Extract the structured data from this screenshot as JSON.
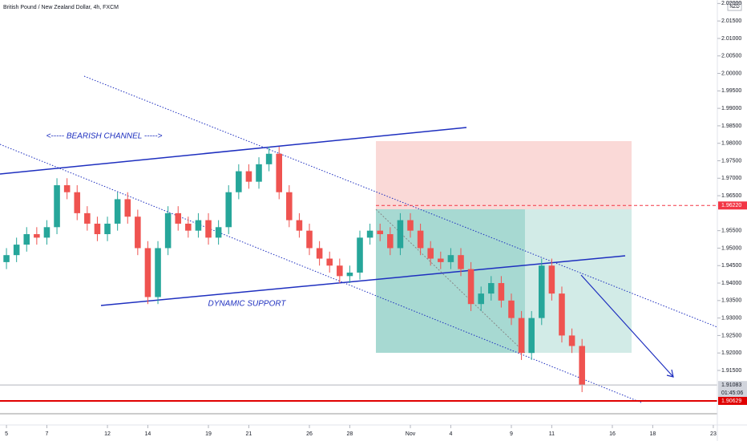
{
  "chart_data": {
    "type": "candlestick",
    "title": "British Pound / New Zealand Dollar, 4h, FXCM",
    "currency": "NZD",
    "annotations": [
      "<----- BEARISH CHANNEL ----->",
      "DYNAMIC SUPPORT"
    ],
    "up_color": "#26a69a",
    "down_color": "#ef5350",
    "x": [
      0,
      0.5,
      1,
      1.5,
      2,
      2.5,
      3,
      3.5,
      4,
      4.5,
      5,
      5.5,
      6,
      6.5,
      7,
      7.5,
      8,
      8.5,
      9,
      9.5,
      10,
      10.5,
      11,
      11.5,
      12,
      12.5,
      13,
      13.5,
      14,
      14.5,
      15,
      15.5,
      16,
      16.5,
      17,
      17.5,
      18,
      18.5,
      19,
      19.5,
      20,
      20.5,
      21,
      21.5,
      22,
      22.5,
      23,
      23.5,
      24,
      24.5,
      25,
      25.5,
      26,
      26.5,
      27,
      27.5,
      28,
      28.5
    ],
    "open": [
      1.946,
      1.948,
      1.951,
      1.954,
      1.953,
      1.956,
      1.968,
      1.966,
      1.96,
      1.957,
      1.954,
      1.957,
      1.964,
      1.959,
      1.95,
      1.936,
      1.95,
      1.96,
      1.957,
      1.955,
      1.958,
      1.953,
      1.956,
      1.966,
      1.972,
      1.969,
      1.974,
      1.977,
      1.966,
      1.958,
      1.955,
      1.95,
      1.947,
      1.945,
      1.942,
      1.943,
      1.953,
      1.955,
      1.954,
      1.95,
      1.958,
      1.955,
      1.95,
      1.947,
      1.946,
      1.948,
      1.944,
      1.934,
      1.937,
      1.94,
      1.935,
      1.93,
      1.92,
      1.93,
      1.945,
      1.937,
      1.925,
      1.922
    ],
    "high": [
      1.95,
      1.953,
      1.956,
      1.956,
      1.958,
      1.97,
      1.97,
      1.968,
      1.962,
      1.959,
      1.959,
      1.966,
      1.966,
      1.961,
      1.952,
      1.952,
      1.962,
      1.962,
      1.959,
      1.96,
      1.96,
      1.958,
      1.968,
      1.974,
      1.974,
      1.976,
      1.979,
      1.979,
      1.968,
      1.96,
      1.957,
      1.952,
      1.949,
      1.947,
      1.945,
      1.955,
      1.957,
      1.957,
      1.956,
      1.96,
      1.96,
      1.957,
      1.952,
      1.949,
      1.95,
      1.95,
      1.946,
      1.939,
      1.942,
      1.942,
      1.937,
      1.932,
      1.932,
      1.947,
      1.947,
      1.939,
      1.927,
      1.924
    ],
    "low": [
      1.944,
      1.946,
      1.949,
      1.951,
      1.951,
      1.954,
      1.964,
      1.958,
      1.955,
      1.952,
      1.952,
      1.955,
      1.957,
      1.948,
      1.934,
      1.934,
      1.948,
      1.955,
      1.953,
      1.953,
      1.951,
      1.951,
      1.954,
      1.964,
      1.967,
      1.967,
      1.972,
      1.964,
      1.956,
      1.953,
      1.948,
      1.945,
      1.943,
      1.94,
      1.94,
      1.941,
      1.951,
      1.952,
      1.948,
      1.948,
      1.953,
      1.948,
      1.945,
      1.944,
      1.944,
      1.942,
      1.932,
      1.932,
      1.935,
      1.933,
      1.928,
      1.918,
      1.918,
      1.928,
      1.935,
      1.923,
      1.92,
      1.9088
    ],
    "close": [
      1.948,
      1.951,
      1.954,
      1.953,
      1.956,
      1.968,
      1.966,
      1.96,
      1.957,
      1.954,
      1.957,
      1.964,
      1.959,
      1.95,
      1.936,
      1.95,
      1.96,
      1.957,
      1.955,
      1.958,
      1.953,
      1.956,
      1.966,
      1.972,
      1.969,
      1.974,
      1.977,
      1.966,
      1.958,
      1.955,
      1.95,
      1.947,
      1.945,
      1.942,
      1.943,
      1.953,
      1.955,
      1.954,
      1.95,
      1.958,
      1.955,
      1.95,
      1.947,
      1.946,
      1.948,
      1.944,
      1.934,
      1.937,
      1.94,
      1.935,
      1.93,
      1.92,
      1.93,
      1.945,
      1.937,
      1.925,
      1.922,
      1.9108
    ],
    "xlim": [
      -0.32,
      35.2
    ],
    "xticks": [
      {
        "value": 0,
        "label": "5"
      },
      {
        "value": 2,
        "label": "7"
      },
      {
        "value": 5,
        "label": "12"
      },
      {
        "value": 7,
        "label": "14"
      },
      {
        "value": 10,
        "label": "19"
      },
      {
        "value": 12,
        "label": "21"
      },
      {
        "value": 15,
        "label": "26"
      },
      {
        "value": 17,
        "label": "28"
      },
      {
        "value": 20,
        "label": "Nov"
      },
      {
        "value": 22,
        "label": "4"
      },
      {
        "value": 25,
        "label": "9"
      },
      {
        "value": 27,
        "label": "11"
      },
      {
        "value": 30,
        "label": "16"
      },
      {
        "value": 32,
        "label": "18"
      },
      {
        "value": 35,
        "label": "23"
      }
    ],
    "ylim": [
      1.8994,
      2.021
    ],
    "yticks": [
      {
        "value": 2.02,
        "label": "2.02000"
      },
      {
        "value": 2.015,
        "label": "2.01500"
      },
      {
        "value": 2.01,
        "label": "2.01000"
      },
      {
        "value": 2.005,
        "label": "2.00500"
      },
      {
        "value": 2.0,
        "label": "2.00000"
      },
      {
        "value": 1.995,
        "label": "1.99500"
      },
      {
        "value": 1.99,
        "label": "1.99000"
      },
      {
        "value": 1.985,
        "label": "1.98500"
      },
      {
        "value": 1.98,
        "label": "1.98000"
      },
      {
        "value": 1.975,
        "label": "1.97500"
      },
      {
        "value": 1.97,
        "label": "1.97000"
      },
      {
        "value": 1.965,
        "label": "1.96500"
      },
      {
        "value": 1.955,
        "label": "1.95500"
      },
      {
        "value": 1.95,
        "label": "1.95000"
      },
      {
        "value": 1.945,
        "label": "1.94500"
      },
      {
        "value": 1.94,
        "label": "1.94000"
      },
      {
        "value": 1.935,
        "label": "1.93500"
      },
      {
        "value": 1.93,
        "label": "1.93000"
      },
      {
        "value": 1.925,
        "label": "1.92500"
      },
      {
        "value": 1.92,
        "label": "1.92000"
      },
      {
        "value": 1.915,
        "label": "1.91500"
      }
    ],
    "price_lines": [
      {
        "value": 1.9622,
        "label": "1.96220",
        "color": "#f23645",
        "style": "dashed"
      },
      {
        "value": 1.91083,
        "label": "1.91083",
        "color": "#b2b5be",
        "style": "solid"
      },
      {
        "value": 1.90629,
        "label": "1.90629",
        "color": "#e00000",
        "style": "thick"
      }
    ],
    "countdown": "01:45:06"
  }
}
